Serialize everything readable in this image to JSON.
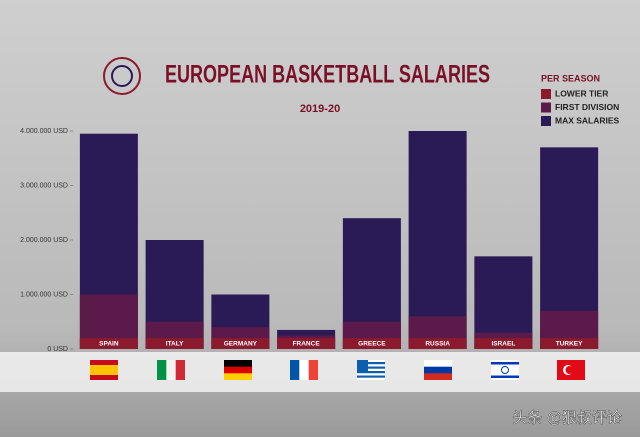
{
  "chart_data": {
    "type": "bar",
    "title": "EUROPEAN BASKETBALL SALARIES",
    "subtitle": "2019-20",
    "legend_title": "PER SEASON",
    "categories": [
      "SPAIN",
      "ITALY",
      "GERMANY",
      "FRANCE",
      "GREECE",
      "RUSSIA",
      "ISRAEL",
      "TURKEY"
    ],
    "series": [
      {
        "name": "LOWER TIER",
        "color": "#8b1a2e",
        "values": [
          200000,
          200000,
          200000,
          200000,
          200000,
          200000,
          200000,
          200000
        ]
      },
      {
        "name": "FIRST DIVISION",
        "color": "#5c1a4a",
        "values": [
          1000000,
          500000,
          400000,
          250000,
          500000,
          600000,
          300000,
          700000
        ]
      },
      {
        "name": "MAX SALARIES",
        "color": "#2a1a55",
        "values": [
          3950000,
          2000000,
          1000000,
          350000,
          2400000,
          4000000,
          1700000,
          3700000
        ]
      }
    ],
    "ylim": [
      0,
      4000000
    ],
    "yticks": [
      {
        "value": 0,
        "label": "0 USD"
      },
      {
        "value": 1000000,
        "label": "1.000.000 USD"
      },
      {
        "value": 2000000,
        "label": "2.000.000 USD"
      },
      {
        "value": 3000000,
        "label": "3.000.000 USD"
      },
      {
        "value": 4000000,
        "label": "4.000.000 USD"
      }
    ],
    "watermark": "头条 @狠叔评论"
  }
}
